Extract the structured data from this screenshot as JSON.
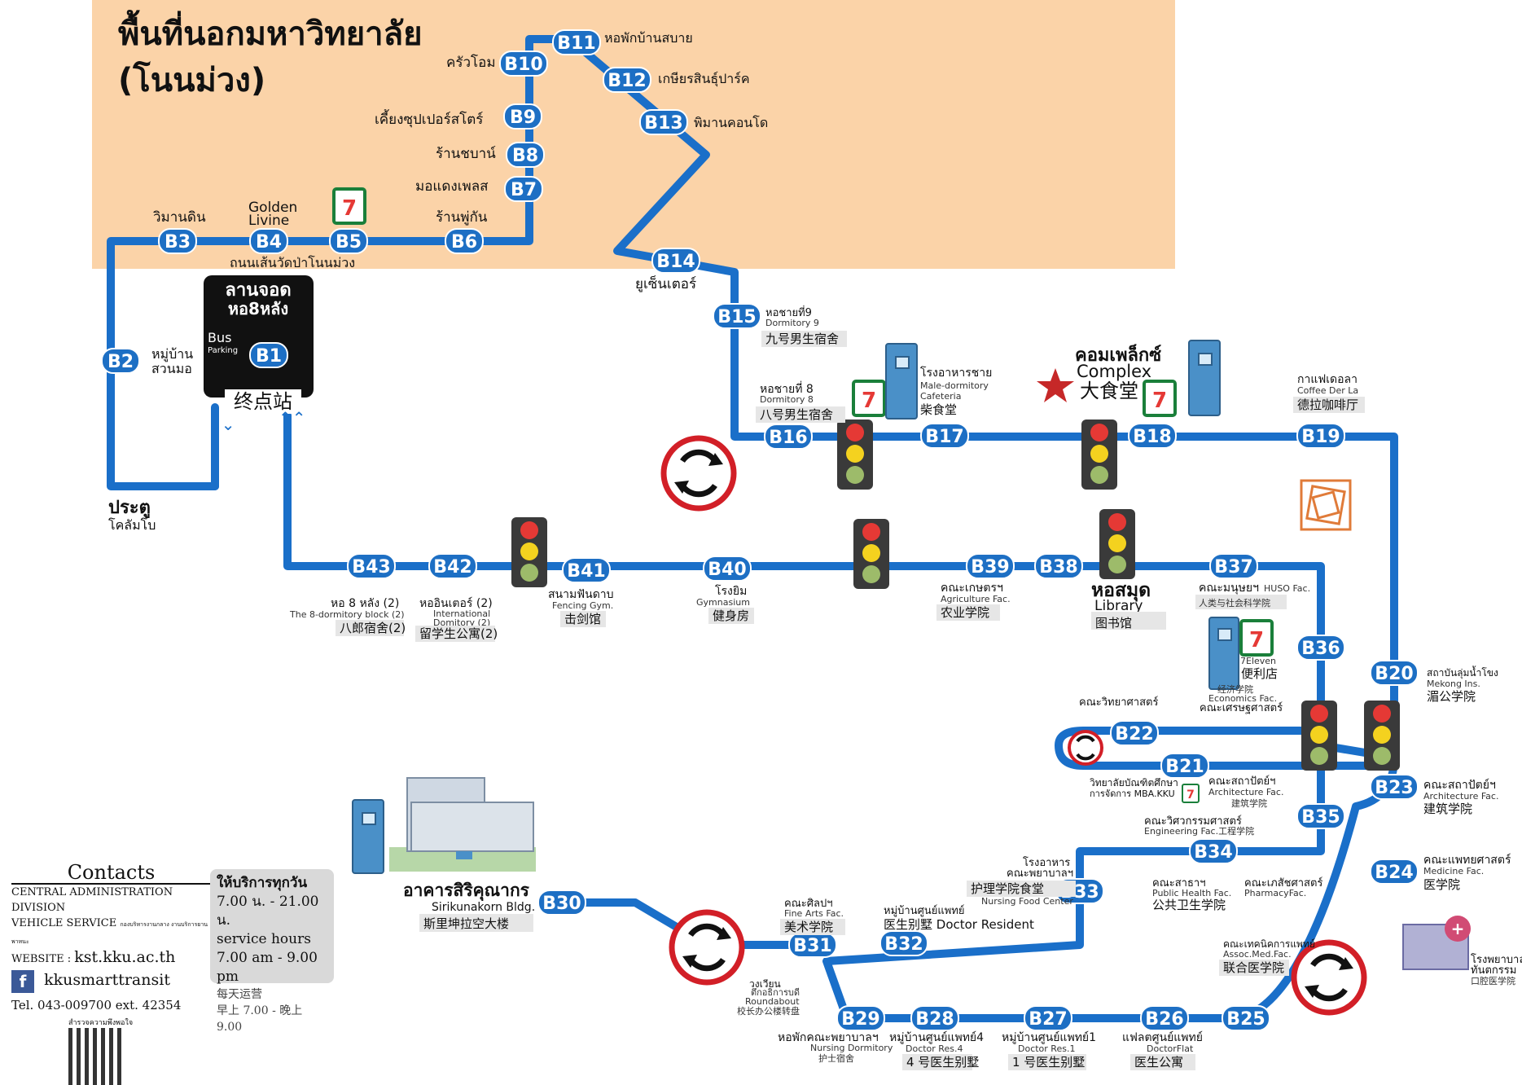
{
  "area": {
    "title_line1": "พื้นที่นอกมหาวิทยาลัย",
    "title_line2": "(โนนม่วง)"
  },
  "terminal": {
    "line1": "ลานจอด",
    "line2": "หอ8หลัง",
    "bus": "Bus",
    "parking": "Parking",
    "cn": "终点站"
  },
  "colors": {
    "route": "#1a6fc9",
    "stop_fill": "#1d6fc4",
    "outer_area": "#fbd3a8",
    "roundabout_red": "#d21f27"
  },
  "stops": [
    {
      "id": "B1",
      "label": "B1"
    },
    {
      "id": "B2",
      "label": "B2"
    },
    {
      "id": "B3",
      "label": "B3"
    },
    {
      "id": "B4",
      "label": "B4"
    },
    {
      "id": "B5",
      "label": "B5"
    },
    {
      "id": "B6",
      "label": "B6"
    },
    {
      "id": "B7",
      "label": "B7"
    },
    {
      "id": "B8",
      "label": "B8"
    },
    {
      "id": "B9",
      "label": "B9"
    },
    {
      "id": "B10",
      "label": "B10"
    },
    {
      "id": "B11",
      "label": "B11"
    },
    {
      "id": "B12",
      "label": "B12"
    },
    {
      "id": "B13",
      "label": "B13"
    },
    {
      "id": "B14",
      "label": "B14"
    },
    {
      "id": "B15",
      "label": "B15"
    },
    {
      "id": "B16",
      "label": "B16"
    },
    {
      "id": "B17",
      "label": "B17"
    },
    {
      "id": "B18",
      "label": "B18"
    },
    {
      "id": "B19",
      "label": "B19"
    },
    {
      "id": "B20",
      "label": "B20"
    },
    {
      "id": "B21",
      "label": "B21"
    },
    {
      "id": "B22",
      "label": "B22"
    },
    {
      "id": "B23",
      "label": "B23"
    },
    {
      "id": "B24",
      "label": "B24"
    },
    {
      "id": "B25",
      "label": "B25"
    },
    {
      "id": "B26",
      "label": "B26"
    },
    {
      "id": "B27",
      "label": "B27"
    },
    {
      "id": "B28",
      "label": "B28"
    },
    {
      "id": "B29",
      "label": "B29"
    },
    {
      "id": "B30",
      "label": "B30"
    },
    {
      "id": "B31",
      "label": "B31"
    },
    {
      "id": "B32",
      "label": "B32"
    },
    {
      "id": "B33",
      "label": "B33"
    },
    {
      "id": "B34",
      "label": "B34"
    },
    {
      "id": "B35",
      "label": "B35"
    },
    {
      "id": "B36",
      "label": "B36"
    },
    {
      "id": "B37",
      "label": "B37"
    },
    {
      "id": "B38",
      "label": "B38"
    },
    {
      "id": "B39",
      "label": "B39"
    },
    {
      "id": "B40",
      "label": "B40"
    },
    {
      "id": "B41",
      "label": "B41"
    },
    {
      "id": "B42",
      "label": "B42"
    },
    {
      "id": "B43",
      "label": "B43"
    }
  ],
  "labels": {
    "b2": [
      "หมู่บ้าน",
      "สวนมอ"
    ],
    "b3": "วิมานดิน",
    "b4": [
      "Golden",
      "Livine"
    ],
    "b5_road": "ถนนเส้นวัดป่าโนนม่วง",
    "b6": "ร้านพู่กัน",
    "b7": "มอแดงเพลส",
    "b8": "ร้านชบาน์",
    "b9": "เคี้ยงซุปเปอร์สโตร์",
    "b10": "ครัวโอม",
    "b11": "หอพักบ้านสบาย",
    "b12": "เกษียรสินธุ์ปาร์ค",
    "b13": "พิมานคอนโด",
    "b14": "ยูเซ็นเตอร์",
    "b15": [
      "หอชายที่9",
      "Dormitory 9",
      "九号男生宿舍"
    ],
    "b16": [
      "หอชายที่ 8",
      "Dormitory 8",
      "八号男生宿舍"
    ],
    "b17": [
      "โรงอาหารชาย",
      "Male-dormitory",
      "Cafeteria",
      "柴食堂"
    ],
    "b18": [
      "คอมเพล็กซ์",
      "Complex",
      "大食堂"
    ],
    "b19": [
      "กาแฟเดอลา",
      "Coffee Der La",
      "德拉咖啡厅"
    ],
    "b20": [
      "สถาบันลุ่มน้ำโขง",
      "Mekong Ins.",
      "湄公学院"
    ],
    "b36": [
      "7Eleven",
      "便利店",
      "经济学院",
      "Economics Fac.",
      "คณะเศรษฐศาสตร์"
    ],
    "b22": "คณะวิทยาศาสตร์",
    "b21": [
      "วิทยาลัยบัณฑิตศึกษา",
      "การจัดการ MBA.KKU"
    ],
    "b21_arch": [
      "คณะสถาปัตย์ฯ",
      "Architecture Fac.",
      "建筑学院"
    ],
    "b23": [
      "คณะสถาปัตย์ฯ",
      "Architecture Fac.",
      "建筑学院"
    ],
    "b35": [
      "คณะวิศวกรรมศาสตร์",
      "Engineering Fac.工程学院"
    ],
    "b24": [
      "คณะแพทยศาสตร์",
      "Medicine Fac.",
      "医学院"
    ],
    "b34": [
      "คณะสาธาฯ",
      "Public Health Fac.",
      "公共卫生学院",
      "คณะเภสัชศาสตร์",
      "PharmacyFac."
    ],
    "b33": [
      "โรงอาหาร",
      "คณะพยาบาลฯ",
      "护理学院食堂",
      "Nursing Food Center"
    ],
    "b32": [
      "หมู่บ้านศูนย์แพทย์",
      "医生别墅 Doctor Resident"
    ],
    "b31": [
      "คณะศิลปฯ",
      "Fine Arts Fac.",
      "美术学院"
    ],
    "b30": [
      "อาคารสิริคุณากร",
      "Sirikunakorn Bldg.",
      "斯里坤拉空大楼"
    ],
    "round31": [
      "วงเวียน",
      "ตึกอธิการบดี",
      "Roundabout",
      "校长办公楼转盘"
    ],
    "b29": [
      "หอพักคณะพยาบาลฯ",
      "Nursing Dormitory",
      "护士宿舍"
    ],
    "b28": [
      "หมู่บ้านศูนย์แพทย์4",
      "Doctor Res.4",
      "4 号医生别墅"
    ],
    "b27": [
      "หมู่บ้านศูนย์แพทย์1",
      "Doctor Res.1",
      "1 号医生别墅"
    ],
    "b26": [
      "แฟลตศูนย์แพทย์",
      "DoctorFlat",
      "医生公寓"
    ],
    "b25": [
      "คณะเทคนิคการแพทย์",
      "Assoc.Med.Fac.",
      "联合医学院"
    ],
    "dent": [
      "โรงพยาบาล",
      "ทันตกรรม",
      "口腔医学院"
    ],
    "b37": [
      "คณะมนุษยฯ",
      "HUSO Fac.",
      "人类与社会科学院"
    ],
    "b38": [
      "หอสมุด",
      "Library",
      "图书馆"
    ],
    "b39": [
      "คณะเกษตรฯ",
      "Agriculture Fac.",
      "农业学院"
    ],
    "b40": [
      "โรงยิม",
      "Gymnasium",
      "健身房"
    ],
    "b41": [
      "สนามฟันดาบ",
      "Fencing Gym.",
      "击剑馆"
    ],
    "b42": [
      "หออินเตอร์ (2)",
      "International",
      "Domitory (2)",
      "留学生公寓(2)"
    ],
    "b43": [
      "หอ 8 หลัง (2)",
      "The 8-dormitory block (2)",
      "八郎宿舍(2)"
    ],
    "gate": [
      "ประตู",
      "โคลัมโบ"
    ]
  },
  "contacts": {
    "title": "Contacts",
    "division": "CENTRAL ADMINISTRATION DIVISION",
    "vehicle": "VEHICLE SERVICE",
    "vehicle_small": "กองบริหารงานกลาง งานบริการยานพาหนะ",
    "website_label": "WEBSITE",
    "website": "kst.kku.ac.th",
    "facebook": "kkusmarttransit",
    "tel": "Tel. 043-009700 ext. 42354",
    "qr": "สำรวจความพึงพอใจ"
  },
  "hours": {
    "th1": "ให้บริการทุกวัน",
    "th2": "7.00 น. - 21.00 น.",
    "en1": "service hours",
    "en2": "7.00 am - 9.00 pm",
    "cn1": "每天运营",
    "cn2": "早上 7.00 - 晚上 9.00"
  }
}
